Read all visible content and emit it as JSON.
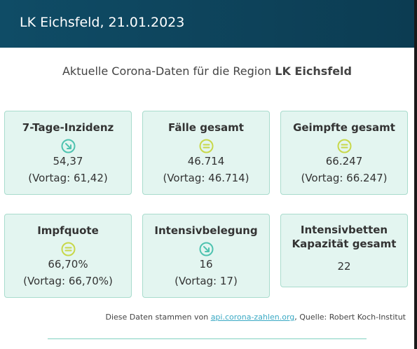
{
  "header": {
    "title": "LK Eichsfeld, 21.01.2023"
  },
  "intro": {
    "prefix": "Aktuelle Corona-Daten für die Region ",
    "region": "LK Eichsfeld"
  },
  "cards": [
    {
      "title": "7-Tage-Inzidenz",
      "icon": "trend-down-icon",
      "value": "54,37",
      "prev": "(Vortag: 61,42)"
    },
    {
      "title": "Fälle gesamt",
      "icon": "equal-icon",
      "value": "46.714",
      "prev": "(Vortag: 46.714)"
    },
    {
      "title": "Geimpfte gesamt",
      "icon": "equal-icon",
      "value": "66.247",
      "prev": "(Vortag: 66.247)"
    },
    {
      "title": "Impfquote",
      "icon": "equal-icon",
      "value": "66,70%",
      "prev": "(Vortag: 66,70%)"
    },
    {
      "title": "Intensivbelegung",
      "icon": "trend-down-icon",
      "value": "16",
      "prev": "(Vortag: 17)"
    },
    {
      "title": "Intensivbetten Kapazität gesamt",
      "value": "22"
    }
  ],
  "footer": {
    "prefix": "Diese Daten stammen von ",
    "link": "api.corona-zahlen.org",
    "suffix": ", Quelle: Robert Koch-Institut"
  },
  "colors": {
    "header_bg": "#0f4c66",
    "card_bg": "#e3f5f0",
    "card_border": "#a9dccd",
    "trend_down": "#4fc3b0",
    "equal": "#c8d84a",
    "link": "#3aa9c4"
  }
}
